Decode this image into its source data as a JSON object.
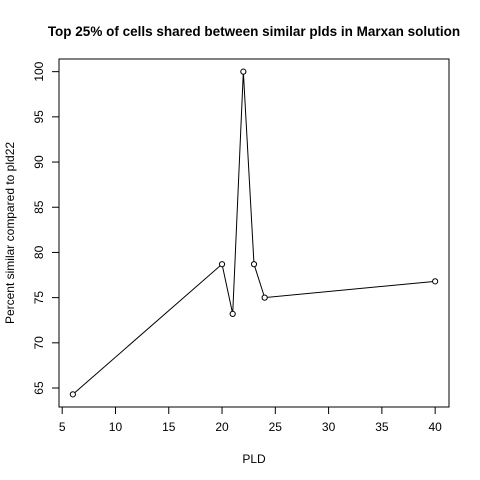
{
  "chart_data": {
    "type": "line",
    "title": "Top 25% of cells shared between similar plds in Marxan solution",
    "xlabel": "PLD",
    "ylabel": "Percent similar compared to pld22",
    "x": [
      6,
      20,
      21,
      22,
      23,
      24,
      40
    ],
    "y": [
      64.3,
      78.7,
      73.2,
      100,
      78.7,
      75.0,
      76.8
    ],
    "xlim": [
      4.7,
      41.3
    ],
    "ylim": [
      62.9,
      101.4
    ],
    "xticks": [
      5,
      10,
      15,
      20,
      25,
      30,
      35,
      40
    ],
    "yticks": [
      65,
      70,
      75,
      80,
      85,
      90,
      95,
      100
    ],
    "markers": "open-circle",
    "grid": false,
    "legend": null
  }
}
